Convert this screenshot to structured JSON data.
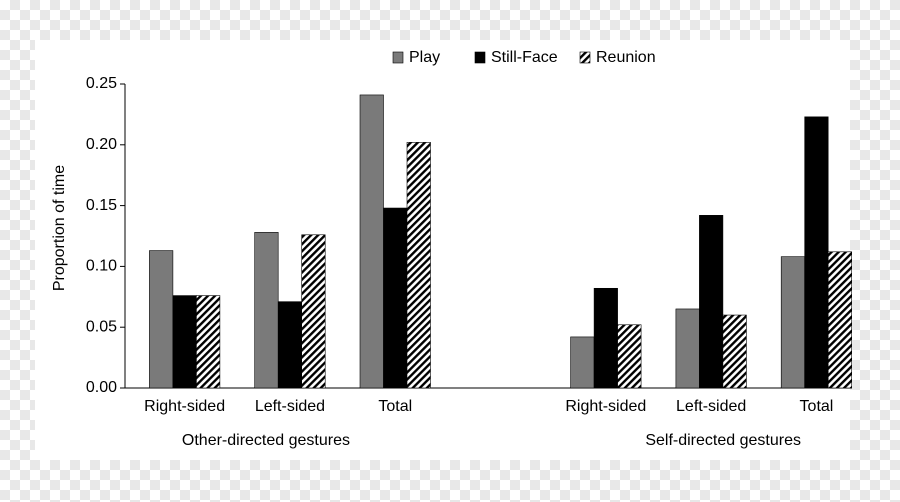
{
  "chart_data": {
    "type": "bar",
    "categories": [
      "Right-sided",
      "Left-sided",
      "Total",
      null,
      "Right-sided",
      "Left-sided",
      "Total"
    ],
    "groups": [
      "Other-directed gestures",
      "Self-directed gestures"
    ],
    "y_label": "Proportion of time",
    "series": [
      {
        "name": "Play",
        "color": "#7a7a7a",
        "pattern": "solid",
        "values": [
          0.113,
          0.128,
          0.241,
          null,
          0.042,
          0.065,
          0.108
        ]
      },
      {
        "name": "Still-Face",
        "color": "#000000",
        "pattern": "solid",
        "values": [
          0.076,
          0.071,
          0.148,
          null,
          0.082,
          0.142,
          0.223
        ]
      },
      {
        "name": "Reunion",
        "color": "#000000",
        "pattern": "hatch",
        "values": [
          0.076,
          0.126,
          0.202,
          null,
          0.052,
          0.06,
          0.112
        ]
      }
    ],
    "ylim": [
      0,
      0.25
    ],
    "yticks": [
      {
        "value": 0,
        "label": "0.00"
      },
      {
        "value": 0.05,
        "label": "0.05"
      },
      {
        "value": 0.1,
        "label": "0.10"
      },
      {
        "value": 0.15,
        "label": "0.15"
      },
      {
        "value": 0.2,
        "label": "0.20"
      },
      {
        "value": 0.25,
        "label": "0.25"
      }
    ],
    "legend": "top",
    "grid": false
  }
}
